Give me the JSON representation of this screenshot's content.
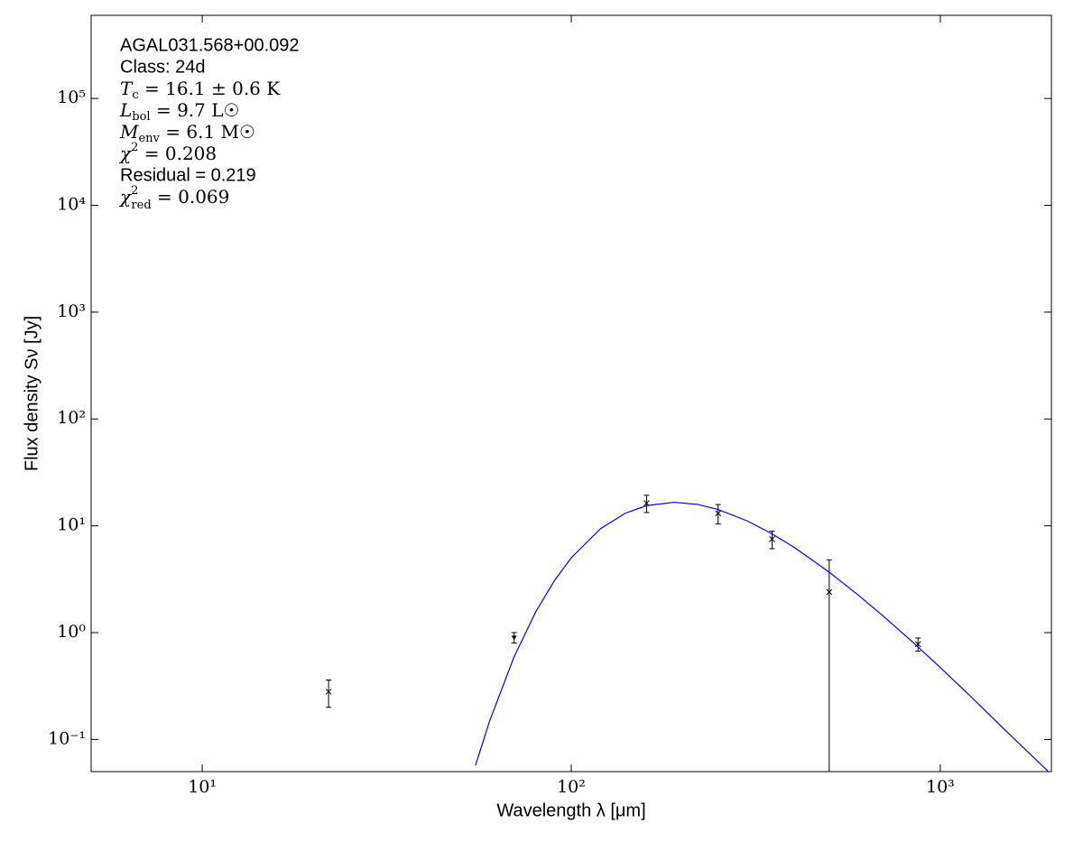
{
  "chart_data": {
    "type": "sed",
    "xlabel": "Wavelength λ [μm]",
    "ylabel": "Flux density Sν [Jy]",
    "log_x": true,
    "log_y": true,
    "xlim": [
      5,
      2000
    ],
    "ylim": [
      0.05,
      600000
    ],
    "xticks": [
      {
        "value": 10,
        "label": "10¹"
      },
      {
        "value": 100,
        "label": "10²"
      },
      {
        "value": 1000,
        "label": "10³"
      }
    ],
    "yticks": [
      {
        "value": 0.1,
        "label": "10⁻¹"
      },
      {
        "value": 1,
        "label": "10⁰"
      },
      {
        "value": 10,
        "label": "10¹"
      },
      {
        "value": 100,
        "label": "10²"
      },
      {
        "value": 1000,
        "label": "10³"
      },
      {
        "value": 10000,
        "label": "10⁴"
      },
      {
        "value": 100000,
        "label": "10⁵"
      }
    ],
    "annotations": [
      {
        "text": "AGAL031.568+00.092"
      },
      {
        "text": "Class: 24d"
      },
      {
        "sym": "T",
        "sub": "c",
        "rest": " = 16.1 ± 0.6 K"
      },
      {
        "sym": "L",
        "sub": "bol",
        "rest": " = 9.7 L☉"
      },
      {
        "sym": "M",
        "sub": "env",
        "rest": " = 6.1 M☉"
      },
      {
        "sym": "χ",
        "sup": "2",
        "rest": " = 0.208"
      },
      {
        "text": "Residual = 0.219"
      },
      {
        "sym": "χ",
        "sup": "2",
        "sub": "red",
        "rest": " = 0.069"
      }
    ],
    "series": [
      {
        "kind": "points",
        "color": "#000000",
        "x": [
          22,
          70,
          160,
          250,
          350,
          500,
          870
        ],
        "values": [
          0.28,
          0.9,
          16.3,
          13.1,
          7.5,
          2.4,
          0.78
        ],
        "errors": [
          0.08,
          0.1,
          3,
          2.7,
          1.4,
          2.4,
          0.11
        ],
        "markers": [
          "x",
          "v",
          "x",
          "x",
          "x",
          "x",
          "x"
        ]
      },
      {
        "kind": "line",
        "color": "#0000ff",
        "x": [
          55,
          60,
          70,
          80,
          90,
          100,
          120,
          140,
          160,
          190,
          220,
          250,
          300,
          350,
          400,
          500,
          600,
          700,
          850,
          1000,
          1200,
          1500,
          2000
        ],
        "values": [
          0.057,
          0.147,
          0.594,
          1.55,
          3.06,
          5.02,
          9.39,
          13.1,
          15.45,
          16.6,
          15.85,
          14.2,
          11.1,
          8.41,
          6.35,
          3.68,
          2.24,
          1.43,
          0.79,
          0.471,
          0.259,
          0.122,
          0.047
        ]
      }
    ]
  }
}
